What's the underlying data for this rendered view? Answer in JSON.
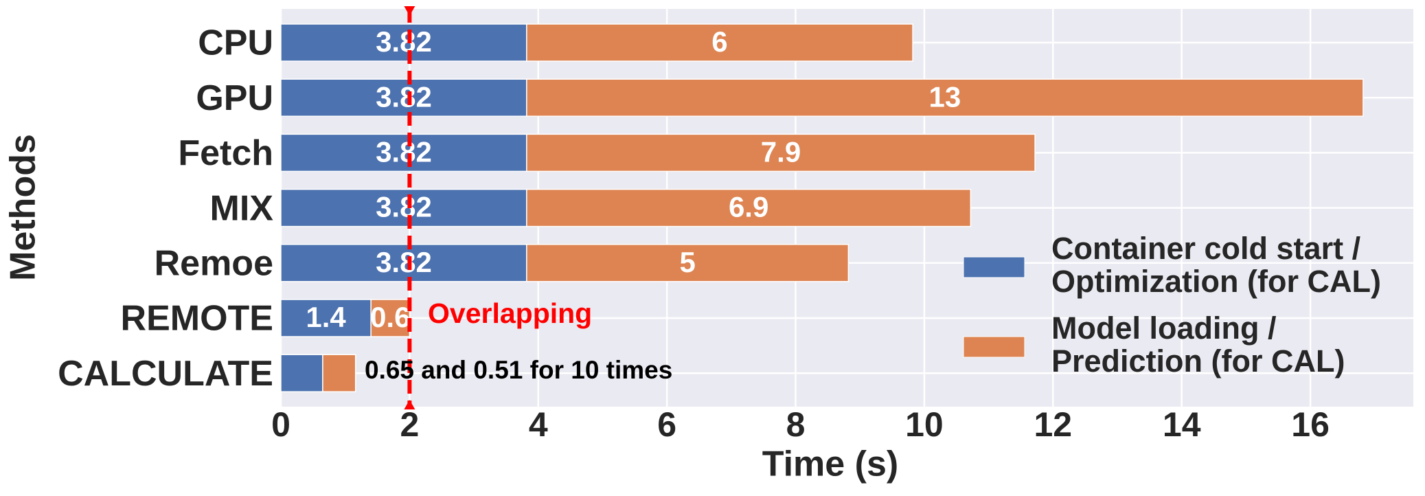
{
  "chart_data": {
    "type": "stacked-barh",
    "x_label": "Time (s)",
    "y_label": "Methods",
    "categories": [
      "CPU",
      "GPU",
      "Fetch",
      "MIX",
      "Remoe",
      "REMOTE",
      "CALCULATE"
    ],
    "series": [
      {
        "name": "Container cold start / Optimization (for CAL)",
        "color": "#4c72b0",
        "values": [
          3.82,
          3.82,
          3.82,
          3.82,
          3.82,
          1.4,
          0.65
        ],
        "value_labels": [
          "3.82",
          "3.82",
          "3.82",
          "3.82",
          "3.82",
          "1.4",
          null
        ]
      },
      {
        "name": "Model loading / Prediction (for CAL)",
        "color": "#dd8452",
        "values": [
          6,
          13,
          7.9,
          6.9,
          5,
          0.6,
          0.51
        ],
        "value_labels": [
          "6",
          "13",
          "7.9",
          "6.9",
          "5",
          "0.6",
          null
        ]
      }
    ],
    "xlim": [
      0,
      17.6
    ],
    "xticks": [
      0,
      2,
      4,
      6,
      8,
      10,
      12,
      14,
      16
    ],
    "grid": true,
    "vline": {
      "x": 2,
      "color": "#ff0000"
    },
    "annotations": [
      {
        "text": "Overlapping",
        "color": "#ff0000"
      },
      {
        "text": "0.65 and 0.51 for 10 times",
        "color": "#000000"
      }
    ]
  }
}
